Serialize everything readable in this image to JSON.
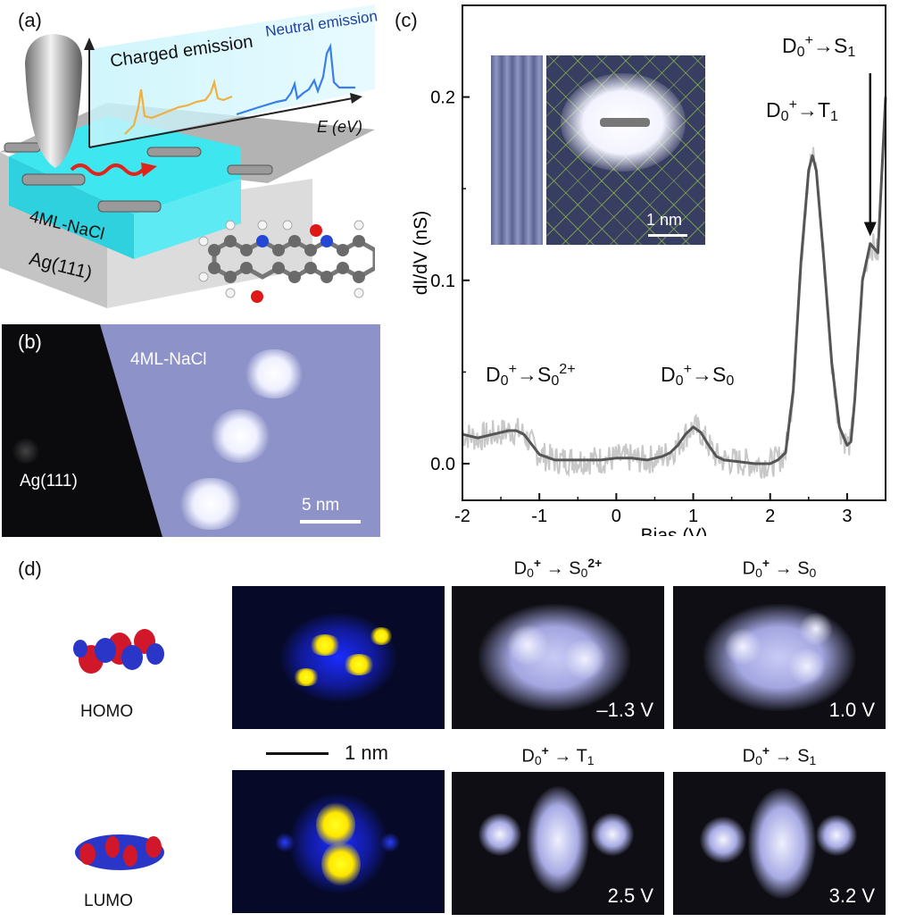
{
  "panel_a": {
    "label": "(a)",
    "charged_emission": "Charged emission",
    "neutral_emission": "Neutral emission",
    "energy_axis": "E (eV)",
    "layer_label": "4ML-NaCl",
    "substrate_label": "Ag(111)"
  },
  "panel_b": {
    "label": "(b)",
    "nacl_label": "4ML-NaCl",
    "ag_label": "Ag(111)",
    "scalebar": "5 nm"
  },
  "panel_c": {
    "label": "(c)",
    "inset_scalebar": "1 nm",
    "peaks": {
      "s0_2plus": "D0+→S02+",
      "s0": "D0+→S0",
      "t1": "D0+→T1",
      "s1": "D0+→S1"
    },
    "chart_data": {
      "type": "line",
      "xlabel": "Bias (V)",
      "ylabel": "dI/dV (nS)",
      "xlim": [
        -2,
        3.5
      ],
      "ylim": [
        -0.02,
        0.25
      ],
      "xticks": [
        "-2",
        "-1",
        "0",
        "1",
        "2",
        "3"
      ],
      "yticks": [
        "0.0",
        "0.1",
        "0.2"
      ],
      "x": [
        -2.0,
        -1.8,
        -1.6,
        -1.4,
        -1.3,
        -1.2,
        -1.0,
        -0.8,
        -0.6,
        -0.4,
        -0.2,
        0.0,
        0.2,
        0.4,
        0.6,
        0.7,
        0.8,
        0.9,
        1.0,
        1.1,
        1.2,
        1.3,
        1.4,
        1.6,
        1.8,
        2.0,
        2.1,
        2.2,
        2.3,
        2.4,
        2.5,
        2.55,
        2.6,
        2.7,
        2.8,
        2.9,
        3.0,
        3.05,
        3.1,
        3.2,
        3.3,
        3.4,
        3.5
      ],
      "y": [
        0.016,
        0.014,
        0.016,
        0.018,
        0.018,
        0.016,
        0.005,
        0.002,
        0.002,
        0.002,
        0.002,
        0.003,
        0.003,
        0.002,
        0.004,
        0.006,
        0.01,
        0.016,
        0.02,
        0.017,
        0.01,
        0.004,
        0.002,
        0.001,
        0.0,
        0.0,
        0.002,
        0.006,
        0.04,
        0.11,
        0.16,
        0.168,
        0.16,
        0.11,
        0.055,
        0.02,
        0.01,
        0.012,
        0.035,
        0.1,
        0.12,
        0.115,
        0.2
      ]
    }
  },
  "panel_d": {
    "label": "(d)",
    "homo": "HOMO",
    "lumo": "LUMO",
    "scalebar": "1 nm",
    "images": [
      {
        "title": "D0+ → S02+",
        "voltage": "–1.3 V"
      },
      {
        "title": "D0+ → S0",
        "voltage": "1.0 V"
      },
      {
        "title": "D0+ → T1",
        "voltage": "2.5 V"
      },
      {
        "title": "D0+ → S1",
        "voltage": "3.2 V"
      }
    ]
  },
  "colors": {
    "curve": "#555555",
    "noise": "#c8c8c8",
    "stm_blue": "#9aa0d6",
    "cyan_layer": "#33e0ea"
  }
}
